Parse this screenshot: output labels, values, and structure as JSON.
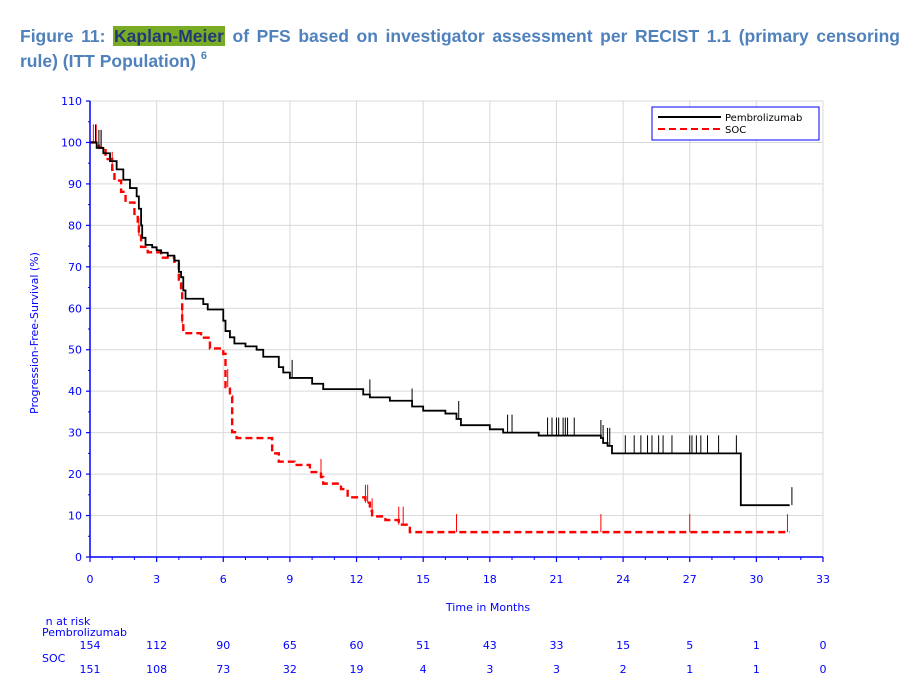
{
  "caption": {
    "prefix": "Figure 11: ",
    "highlight": "Kaplan-Meier",
    "rest": " of PFS based on investigator assessment per RECIST 1.1 (primary censoring rule) (ITT Population) ",
    "superscript": "6"
  },
  "colors": {
    "axis": "#0000ff",
    "pembrolizumab": "#000000",
    "soc": "#ff0000",
    "grid": "#d9d9d9",
    "caption": "#4f81bd",
    "highlight": "#7aab27"
  },
  "chart_data": {
    "type": "line",
    "xlabel": "Time in Months",
    "ylabel": "Progression-Free-Survival (%)",
    "xlim": [
      0,
      33
    ],
    "ylim": [
      0,
      110
    ],
    "x_ticks": [
      0,
      3,
      6,
      9,
      12,
      15,
      18,
      21,
      24,
      27,
      30,
      33
    ],
    "y_ticks": [
      0,
      10,
      20,
      30,
      40,
      50,
      60,
      70,
      80,
      90,
      100,
      110
    ],
    "grid": true,
    "legend_position": "top-right",
    "series": [
      {
        "name": "Pembrolizumab",
        "style": "solid",
        "steps": [
          [
            0,
            100
          ],
          [
            0.3,
            98.7
          ],
          [
            0.6,
            97.4
          ],
          [
            0.9,
            95.5
          ],
          [
            1.2,
            93.5
          ],
          [
            1.5,
            91
          ],
          [
            1.8,
            89
          ],
          [
            2.1,
            87
          ],
          [
            2.2,
            84
          ],
          [
            2.3,
            80
          ],
          [
            2.35,
            77
          ],
          [
            2.5,
            75.3
          ],
          [
            2.8,
            74.7
          ],
          [
            3.0,
            74.0
          ],
          [
            3.2,
            73.4
          ],
          [
            3.5,
            72.7
          ],
          [
            3.8,
            71.5
          ],
          [
            4.0,
            68.8
          ],
          [
            4.1,
            67.5
          ],
          [
            4.2,
            64.3
          ],
          [
            4.3,
            62.3
          ],
          [
            5.1,
            61
          ],
          [
            5.3,
            59.7
          ],
          [
            6.0,
            57
          ],
          [
            6.1,
            54.5
          ],
          [
            6.3,
            53
          ],
          [
            6.5,
            51.5
          ],
          [
            7.0,
            50.8
          ],
          [
            7.5,
            50
          ],
          [
            7.8,
            48.3
          ],
          [
            8.5,
            45.8
          ],
          [
            8.7,
            44.5
          ],
          [
            9.0,
            43.2
          ],
          [
            10.0,
            41.8
          ],
          [
            10.5,
            40.5
          ],
          [
            12.3,
            39.2
          ],
          [
            12.6,
            38.5
          ],
          [
            13.5,
            37.7
          ],
          [
            14.5,
            36.3
          ],
          [
            15.0,
            35.3
          ],
          [
            16.0,
            34.6
          ],
          [
            16.5,
            33.3
          ],
          [
            16.7,
            31.8
          ],
          [
            18.0,
            30.8
          ],
          [
            18.6,
            30.0
          ],
          [
            20.2,
            29.3
          ],
          [
            23.0,
            28.7
          ],
          [
            23.1,
            27.5
          ],
          [
            23.3,
            26.8
          ],
          [
            23.5,
            25.0
          ],
          [
            29.2,
            25.0
          ],
          [
            29.3,
            12.5
          ],
          [
            31.5,
            12.5
          ]
        ],
        "censor_x": [
          0.25,
          0.4,
          0.5,
          9.1,
          12.6,
          14.5,
          16.6,
          18.8,
          19.0,
          20.6,
          20.8,
          21.0,
          21.1,
          21.3,
          21.4,
          21.5,
          21.8,
          23.0,
          23.1,
          23.3,
          23.4,
          24.1,
          24.5,
          24.8,
          25.1,
          25.3,
          25.6,
          25.8,
          26.2,
          27.0,
          27.1,
          27.3,
          27.5,
          27.8,
          28.3,
          29.1,
          31.6
        ]
      },
      {
        "name": "SOC",
        "style": "dashed",
        "steps": [
          [
            0,
            100
          ],
          [
            0.4,
            98.7
          ],
          [
            0.7,
            96
          ],
          [
            1.0,
            93.4
          ],
          [
            1.1,
            90.8
          ],
          [
            1.4,
            88.1
          ],
          [
            1.6,
            85.5
          ],
          [
            2.0,
            82.8
          ],
          [
            2.15,
            80.2
          ],
          [
            2.2,
            77.5
          ],
          [
            2.3,
            74.8
          ],
          [
            2.6,
            73.5
          ],
          [
            3.2,
            72.2
          ],
          [
            3.8,
            70.9
          ],
          [
            4.0,
            66.9
          ],
          [
            4.1,
            64.3
          ],
          [
            4.15,
            56.3
          ],
          [
            4.2,
            54.0
          ],
          [
            5.0,
            52.9
          ],
          [
            5.4,
            50.3
          ],
          [
            6.0,
            49.0
          ],
          [
            6.1,
            41.0
          ],
          [
            6.3,
            38.7
          ],
          [
            6.4,
            30.1
          ],
          [
            6.6,
            28.7
          ],
          [
            8.2,
            25.0
          ],
          [
            8.5,
            23.0
          ],
          [
            9.2,
            22.2
          ],
          [
            9.9,
            20.5
          ],
          [
            10.4,
            19.3
          ],
          [
            10.5,
            17.7
          ],
          [
            11.3,
            16.4
          ],
          [
            11.6,
            14.4
          ],
          [
            12.4,
            13.1
          ],
          [
            12.6,
            11.1
          ],
          [
            12.7,
            9.8
          ],
          [
            13.3,
            8.9
          ],
          [
            13.9,
            7.8
          ],
          [
            14.4,
            6.0
          ],
          [
            31.5,
            6.0
          ]
        ],
        "censor_x": [
          0.15,
          0.28,
          0.5,
          1.0,
          2.2,
          4.15,
          6.2,
          10.4,
          12.4,
          12.5,
          12.7,
          13.9,
          14.1,
          16.5,
          23.0,
          27.0,
          31.4
        ]
      }
    ],
    "at_risk": {
      "header": "n at risk",
      "time_points": [
        0,
        3,
        6,
        9,
        12,
        15,
        18,
        21,
        24,
        27,
        30,
        33
      ],
      "rows": [
        {
          "label": "Pembrolizumab",
          "values": [
            "154",
            "112",
            "90",
            "65",
            "60",
            "51",
            "43",
            "33",
            "15",
            "5",
            "1",
            "0"
          ]
        },
        {
          "label": "SOC",
          "values": [
            "151",
            "108",
            "73",
            "32",
            "19",
            "4",
            "3",
            "3",
            "2",
            "1",
            "1",
            "0"
          ]
        }
      ]
    }
  }
}
